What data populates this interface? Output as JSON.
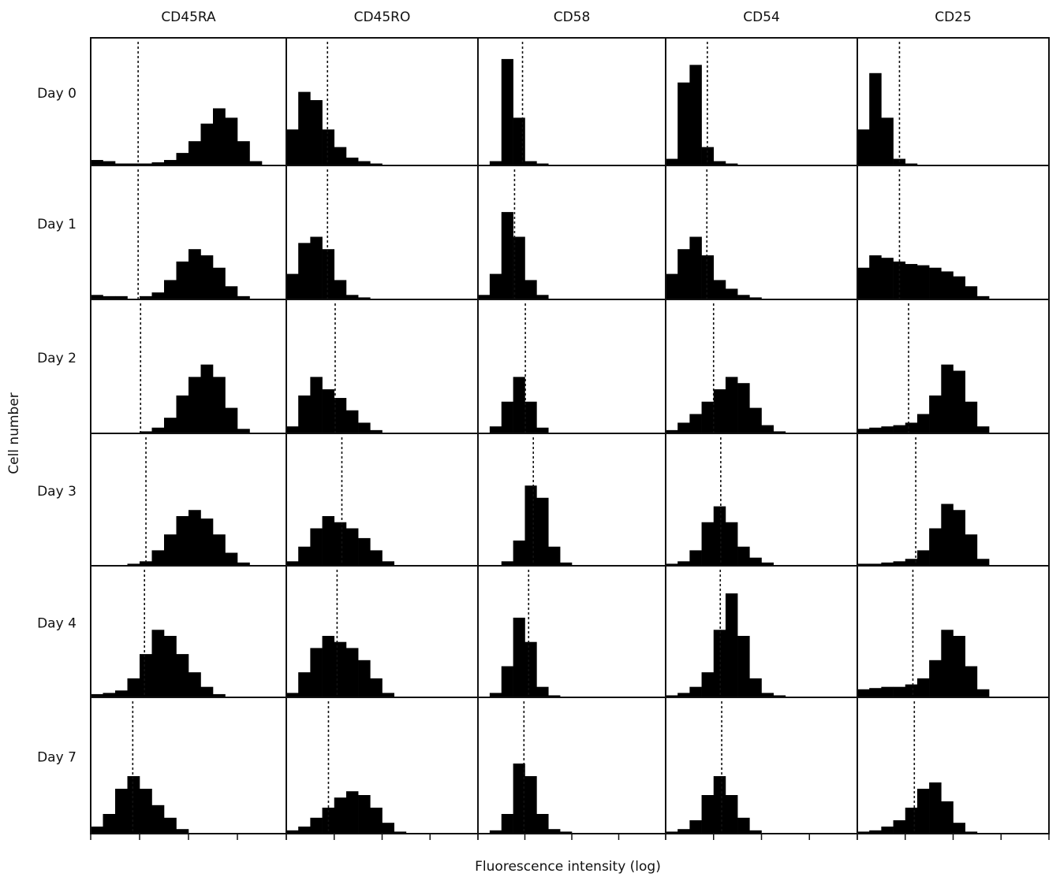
{
  "chart_data": {
    "type": "histogram-grid",
    "x_label": "Fluorescence intensity (log)",
    "y_label": "Cell number",
    "columns": [
      "CD45RA",
      "CD45RO",
      "CD58",
      "CD54",
      "CD25"
    ],
    "rows": [
      "Day 0",
      "Day 1",
      "Day 2",
      "Day 3",
      "Day 4",
      "Day 7"
    ],
    "xlim": [
      0,
      4
    ],
    "ylim": [
      0,
      100
    ],
    "xticks": [
      0,
      1,
      2,
      3,
      4
    ],
    "color": "#000000",
    "bins": [
      0,
      0.25,
      0.5,
      0.75,
      1,
      1.25,
      1.5,
      1.75,
      2,
      2.25,
      2.5,
      2.75,
      3,
      3.25,
      3.5,
      3.75,
      4
    ],
    "panels": [
      [
        {
          "marker": 0.97,
          "values": [
            4,
            3,
            1,
            1,
            1,
            2,
            4,
            10,
            20,
            35,
            48,
            40,
            20,
            3,
            0,
            0
          ]
        },
        {
          "marker": 0.86,
          "values": [
            30,
            62,
            55,
            30,
            15,
            6,
            3,
            1,
            0,
            0,
            0,
            0,
            0,
            0,
            0,
            0
          ]
        },
        {
          "marker": 0.95,
          "values": [
            0,
            3,
            90,
            40,
            3,
            1,
            0,
            0,
            0,
            0,
            0,
            0,
            0,
            0,
            0,
            0
          ]
        },
        {
          "marker": 0.87,
          "values": [
            5,
            70,
            85,
            15,
            3,
            1,
            0,
            0,
            0,
            0,
            0,
            0,
            0,
            0,
            0,
            0
          ]
        },
        {
          "marker": 0.88,
          "values": [
            30,
            78,
            40,
            5,
            1,
            0,
            0,
            0,
            0,
            0,
            0,
            0,
            0,
            0,
            0,
            0
          ]
        }
      ],
      [
        {
          "marker": 0.97,
          "values": [
            3,
            2,
            2,
            0,
            2,
            5,
            15,
            30,
            40,
            35,
            25,
            10,
            2,
            0,
            0,
            0
          ]
        },
        {
          "marker": 0.86,
          "values": [
            20,
            45,
            50,
            40,
            15,
            3,
            1,
            0,
            0,
            0,
            0,
            0,
            0,
            0,
            0,
            0
          ]
        },
        {
          "marker": 0.78,
          "values": [
            3,
            20,
            70,
            50,
            15,
            3,
            0,
            0,
            0,
            0,
            0,
            0,
            0,
            0,
            0,
            0
          ]
        },
        {
          "marker": 0.86,
          "values": [
            20,
            40,
            50,
            35,
            15,
            8,
            3,
            1,
            0,
            0,
            0,
            0,
            0,
            0,
            0,
            0
          ]
        },
        {
          "marker": 0.88,
          "values": [
            25,
            35,
            33,
            30,
            28,
            27,
            25,
            22,
            18,
            10,
            2,
            0,
            0,
            0,
            0,
            0
          ]
        }
      ],
      [
        {
          "marker": 1.02,
          "values": [
            0,
            0,
            0,
            0,
            1,
            4,
            12,
            30,
            45,
            55,
            45,
            20,
            3,
            0,
            0,
            0
          ]
        },
        {
          "marker": 1.02,
          "values": [
            5,
            30,
            45,
            35,
            28,
            18,
            8,
            2,
            0,
            0,
            0,
            0,
            0,
            0,
            0,
            0
          ]
        },
        {
          "marker": 1.01,
          "values": [
            0,
            5,
            25,
            45,
            25,
            4,
            0,
            0,
            0,
            0,
            0,
            0,
            0,
            0,
            0,
            0
          ]
        },
        {
          "marker": 1.0,
          "values": [
            2,
            8,
            15,
            25,
            35,
            45,
            40,
            20,
            6,
            1,
            0,
            0,
            0,
            0,
            0,
            0
          ]
        },
        {
          "marker": 1.07,
          "values": [
            3,
            4,
            5,
            6,
            8,
            15,
            30,
            55,
            50,
            25,
            5,
            0,
            0,
            0,
            0,
            0
          ]
        }
      ],
      [
        {
          "marker": 1.13,
          "values": [
            0,
            0,
            0,
            1,
            3,
            12,
            25,
            40,
            45,
            38,
            25,
            10,
            2,
            0,
            0,
            0
          ]
        },
        {
          "marker": 1.16,
          "values": [
            3,
            15,
            30,
            40,
            35,
            30,
            22,
            12,
            3,
            0,
            0,
            0,
            0,
            0,
            0,
            0
          ]
        },
        {
          "marker": 1.18,
          "values": [
            0,
            0,
            3,
            20,
            65,
            55,
            15,
            2,
            0,
            0,
            0,
            0,
            0,
            0,
            0,
            0
          ]
        },
        {
          "marker": 1.15,
          "values": [
            1,
            3,
            12,
            35,
            48,
            35,
            15,
            6,
            2,
            0,
            0,
            0,
            0,
            0,
            0,
            0
          ]
        },
        {
          "marker": 1.22,
          "values": [
            1,
            1,
            2,
            3,
            5,
            12,
            30,
            50,
            45,
            25,
            5,
            0,
            0,
            0,
            0,
            0
          ]
        }
      ],
      [
        {
          "marker": 1.1,
          "values": [
            2,
            3,
            5,
            15,
            35,
            55,
            50,
            35,
            20,
            8,
            2,
            0,
            0,
            0,
            0,
            0
          ]
        },
        {
          "marker": 1.06,
          "values": [
            3,
            20,
            40,
            50,
            45,
            40,
            30,
            15,
            3,
            0,
            0,
            0,
            0,
            0,
            0,
            0
          ]
        },
        {
          "marker": 1.08,
          "values": [
            0,
            3,
            25,
            65,
            45,
            8,
            1,
            0,
            0,
            0,
            0,
            0,
            0,
            0,
            0,
            0
          ]
        },
        {
          "marker": 1.14,
          "values": [
            1,
            3,
            8,
            20,
            55,
            85,
            50,
            15,
            3,
            1,
            0,
            0,
            0,
            0,
            0,
            0
          ]
        },
        {
          "marker": 1.16,
          "values": [
            6,
            7,
            8,
            8,
            10,
            15,
            30,
            55,
            50,
            25,
            6,
            0,
            0,
            0,
            0,
            0
          ]
        }
      ],
      [
        {
          "marker": 0.86,
          "values": [
            5,
            15,
            35,
            45,
            35,
            22,
            12,
            3,
            0,
            0,
            0,
            0,
            0,
            0,
            0,
            0
          ]
        },
        {
          "marker": 0.88,
          "values": [
            2,
            5,
            12,
            20,
            28,
            33,
            30,
            20,
            8,
            1,
            0,
            0,
            0,
            0,
            0,
            0
          ]
        },
        {
          "marker": 0.98,
          "values": [
            0,
            2,
            15,
            55,
            45,
            15,
            3,
            1,
            0,
            0,
            0,
            0,
            0,
            0,
            0,
            0
          ]
        },
        {
          "marker": 1.17,
          "values": [
            1,
            3,
            10,
            30,
            45,
            30,
            12,
            2,
            0,
            0,
            0,
            0,
            0,
            0,
            0,
            0
          ]
        },
        {
          "marker": 1.19,
          "values": [
            1,
            2,
            5,
            10,
            20,
            35,
            40,
            25,
            8,
            1,
            0,
            0,
            0,
            0,
            0,
            0
          ]
        }
      ]
    ]
  }
}
